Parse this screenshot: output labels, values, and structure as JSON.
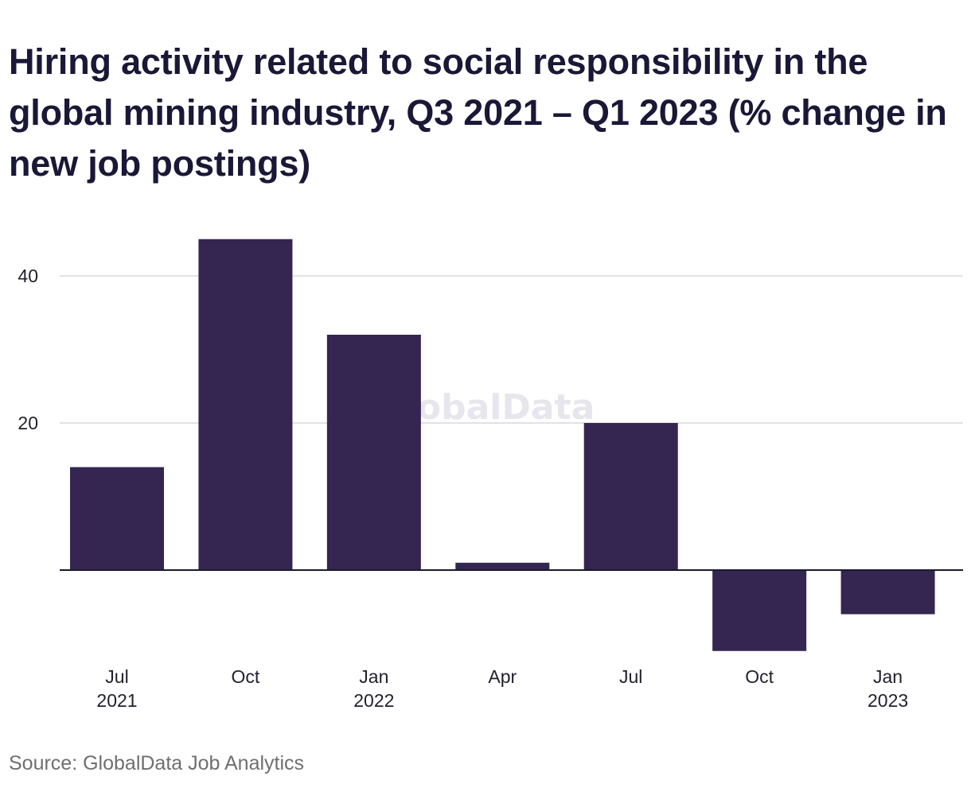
{
  "title": "Hiring activity related to social responsibility in the global mining industry, Q3 2021 – Q1 2023 (% change in new job postings)",
  "source": "Source: GlobalData Job Analytics",
  "watermark": "GlobalData",
  "colors": {
    "bar": "#352551",
    "gridline": "#d9d9d9",
    "zero_line": "#1b1a2e",
    "text": "#1a1836",
    "source_text": "#6f6f6f",
    "watermark": "#e7e6ec"
  },
  "chart_data": {
    "type": "bar",
    "categories": [
      [
        "Jul",
        "2021"
      ],
      [
        "Oct",
        ""
      ],
      [
        "Jan",
        "2022"
      ],
      [
        "Apr",
        ""
      ],
      [
        "Jul",
        ""
      ],
      [
        "Oct",
        ""
      ],
      [
        "Jan",
        "2023"
      ]
    ],
    "values": [
      14,
      45,
      32,
      1,
      20,
      -11,
      -6
    ],
    "y_ticks": [
      20,
      40
    ],
    "ylim": [
      -11,
      45
    ],
    "grid": true,
    "legend": "none",
    "xlabel": "",
    "ylabel": ""
  }
}
